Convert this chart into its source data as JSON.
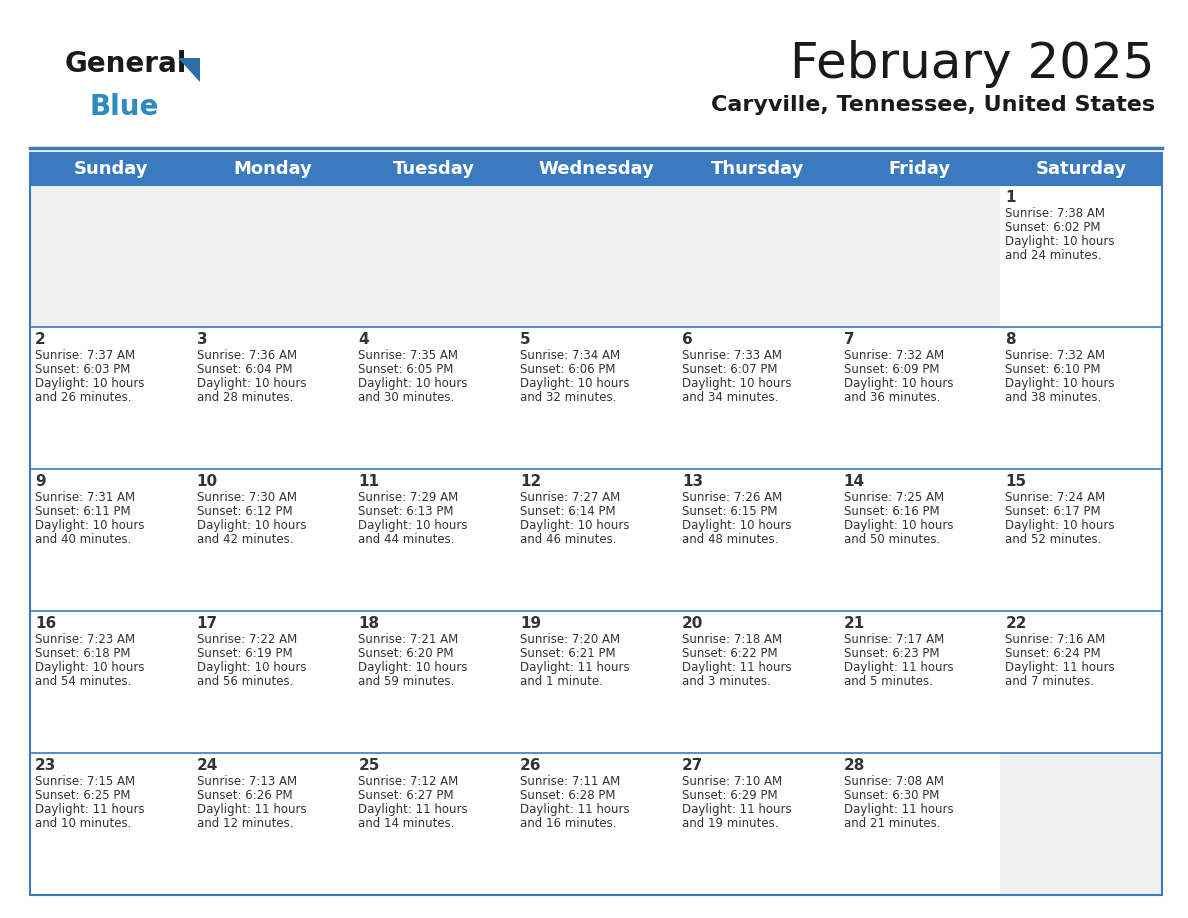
{
  "title": "February 2025",
  "subtitle": "Caryville, Tennessee, United States",
  "header_color": "#3a7abf",
  "header_text_color": "#ffffff",
  "cell_bg_color": "#ffffff",
  "first_row_empty_bg": "#f0f0f0",
  "border_color": "#3a7abf",
  "row_divider_color": "#3a7abf",
  "text_color": "#333333",
  "days_of_week": [
    "Sunday",
    "Monday",
    "Tuesday",
    "Wednesday",
    "Thursday",
    "Friday",
    "Saturday"
  ],
  "logo_general_color": "#1a1a1a",
  "logo_blue_color": "#2e8bc0",
  "logo_triangle_color": "#2e6da4",
  "title_fontsize": 36,
  "subtitle_fontsize": 16,
  "header_fontsize": 13,
  "day_num_fontsize": 11,
  "cell_fontsize": 8.5,
  "calendar_data": [
    [
      {
        "day": "",
        "sunrise": "",
        "sunset": "",
        "daylight": ""
      },
      {
        "day": "",
        "sunrise": "",
        "sunset": "",
        "daylight": ""
      },
      {
        "day": "",
        "sunrise": "",
        "sunset": "",
        "daylight": ""
      },
      {
        "day": "",
        "sunrise": "",
        "sunset": "",
        "daylight": ""
      },
      {
        "day": "",
        "sunrise": "",
        "sunset": "",
        "daylight": ""
      },
      {
        "day": "",
        "sunrise": "",
        "sunset": "",
        "daylight": ""
      },
      {
        "day": "1",
        "sunrise": "7:38 AM",
        "sunset": "6:02 PM",
        "daylight": "10 hours and 24 minutes."
      }
    ],
    [
      {
        "day": "2",
        "sunrise": "7:37 AM",
        "sunset": "6:03 PM",
        "daylight": "10 hours and 26 minutes."
      },
      {
        "day": "3",
        "sunrise": "7:36 AM",
        "sunset": "6:04 PM",
        "daylight": "10 hours and 28 minutes."
      },
      {
        "day": "4",
        "sunrise": "7:35 AM",
        "sunset": "6:05 PM",
        "daylight": "10 hours and 30 minutes."
      },
      {
        "day": "5",
        "sunrise": "7:34 AM",
        "sunset": "6:06 PM",
        "daylight": "10 hours and 32 minutes."
      },
      {
        "day": "6",
        "sunrise": "7:33 AM",
        "sunset": "6:07 PM",
        "daylight": "10 hours and 34 minutes."
      },
      {
        "day": "7",
        "sunrise": "7:32 AM",
        "sunset": "6:09 PM",
        "daylight": "10 hours and 36 minutes."
      },
      {
        "day": "8",
        "sunrise": "7:32 AM",
        "sunset": "6:10 PM",
        "daylight": "10 hours and 38 minutes."
      }
    ],
    [
      {
        "day": "9",
        "sunrise": "7:31 AM",
        "sunset": "6:11 PM",
        "daylight": "10 hours and 40 minutes."
      },
      {
        "day": "10",
        "sunrise": "7:30 AM",
        "sunset": "6:12 PM",
        "daylight": "10 hours and 42 minutes."
      },
      {
        "day": "11",
        "sunrise": "7:29 AM",
        "sunset": "6:13 PM",
        "daylight": "10 hours and 44 minutes."
      },
      {
        "day": "12",
        "sunrise": "7:27 AM",
        "sunset": "6:14 PM",
        "daylight": "10 hours and 46 minutes."
      },
      {
        "day": "13",
        "sunrise": "7:26 AM",
        "sunset": "6:15 PM",
        "daylight": "10 hours and 48 minutes."
      },
      {
        "day": "14",
        "sunrise": "7:25 AM",
        "sunset": "6:16 PM",
        "daylight": "10 hours and 50 minutes."
      },
      {
        "day": "15",
        "sunrise": "7:24 AM",
        "sunset": "6:17 PM",
        "daylight": "10 hours and 52 minutes."
      }
    ],
    [
      {
        "day": "16",
        "sunrise": "7:23 AM",
        "sunset": "6:18 PM",
        "daylight": "10 hours and 54 minutes."
      },
      {
        "day": "17",
        "sunrise": "7:22 AM",
        "sunset": "6:19 PM",
        "daylight": "10 hours and 56 minutes."
      },
      {
        "day": "18",
        "sunrise": "7:21 AM",
        "sunset": "6:20 PM",
        "daylight": "10 hours and 59 minutes."
      },
      {
        "day": "19",
        "sunrise": "7:20 AM",
        "sunset": "6:21 PM",
        "daylight": "11 hours and 1 minute."
      },
      {
        "day": "20",
        "sunrise": "7:18 AM",
        "sunset": "6:22 PM",
        "daylight": "11 hours and 3 minutes."
      },
      {
        "day": "21",
        "sunrise": "7:17 AM",
        "sunset": "6:23 PM",
        "daylight": "11 hours and 5 minutes."
      },
      {
        "day": "22",
        "sunrise": "7:16 AM",
        "sunset": "6:24 PM",
        "daylight": "11 hours and 7 minutes."
      }
    ],
    [
      {
        "day": "23",
        "sunrise": "7:15 AM",
        "sunset": "6:25 PM",
        "daylight": "11 hours and 10 minutes."
      },
      {
        "day": "24",
        "sunrise": "7:13 AM",
        "sunset": "6:26 PM",
        "daylight": "11 hours and 12 minutes."
      },
      {
        "day": "25",
        "sunrise": "7:12 AM",
        "sunset": "6:27 PM",
        "daylight": "11 hours and 14 minutes."
      },
      {
        "day": "26",
        "sunrise": "7:11 AM",
        "sunset": "6:28 PM",
        "daylight": "11 hours and 16 minutes."
      },
      {
        "day": "27",
        "sunrise": "7:10 AM",
        "sunset": "6:29 PM",
        "daylight": "11 hours and 19 minutes."
      },
      {
        "day": "28",
        "sunrise": "7:08 AM",
        "sunset": "6:30 PM",
        "daylight": "11 hours and 21 minutes."
      },
      {
        "day": "",
        "sunrise": "",
        "sunset": "",
        "daylight": ""
      }
    ]
  ]
}
